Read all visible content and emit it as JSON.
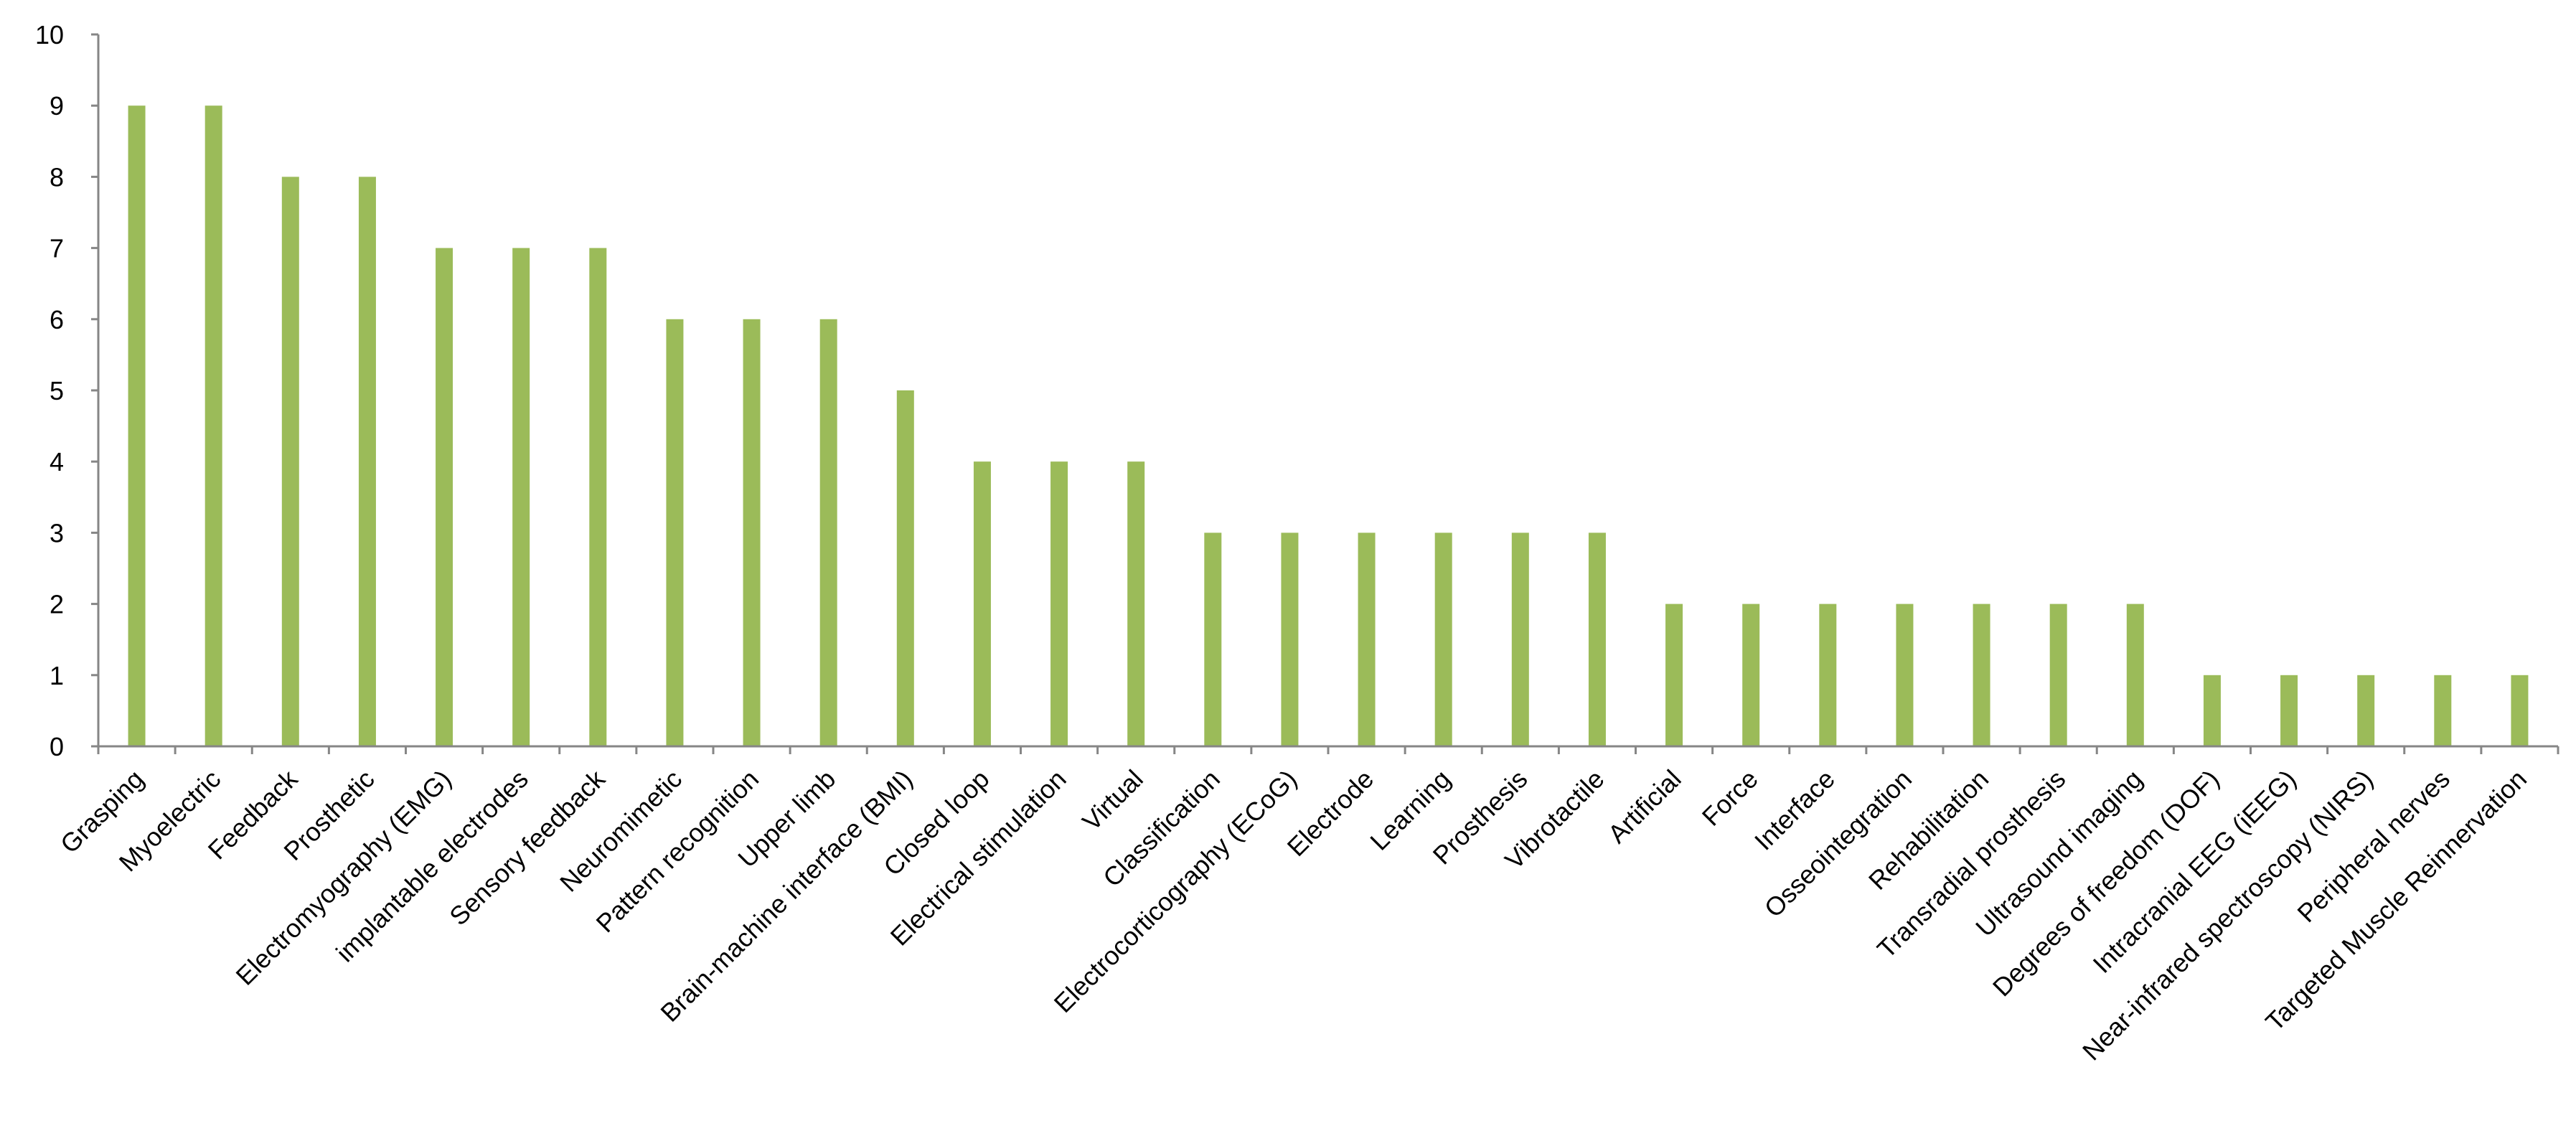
{
  "chart_data": {
    "type": "bar",
    "title": "",
    "xlabel": "",
    "ylabel": "",
    "ylim": [
      0,
      10
    ],
    "yticks": [
      0,
      1,
      2,
      3,
      4,
      5,
      6,
      7,
      8,
      9,
      10
    ],
    "grid": false,
    "legend": "none",
    "bar_color": "#9BBB59",
    "categories": [
      "Grasping",
      "Myoelectric",
      "Feedback",
      "Prosthetic",
      "Electromyography (EMG)",
      "implantable electrodes",
      "Sensory feedback",
      "Neuromimetic",
      "Pattern recognition",
      "Upper limb",
      "Brain-machine interface (BMI)",
      "Closed loop",
      "Electrical stimulation",
      "Virtual",
      "Classification",
      "Electrocorticography (ECoG)",
      "Electrode",
      "Learning",
      "Prosthesis",
      "Vibrotactile",
      "Artificial",
      "Force",
      "Interface",
      "Osseointegration",
      "Rehabilitation",
      "Transradial prosthesis",
      "Ultrasound imaging",
      "Degrees of freedom (DOF)",
      "Intracranial EEG (iEEG)",
      "Near-infrared spectroscopy (NIRS)",
      "Peripheral nerves",
      "Targeted Muscle Reinnervation"
    ],
    "values": [
      9,
      9,
      8,
      8,
      7,
      7,
      7,
      6,
      6,
      6,
      5,
      4,
      4,
      4,
      3,
      3,
      3,
      3,
      3,
      3,
      2,
      2,
      2,
      2,
      2,
      2,
      2,
      1,
      1,
      1,
      1,
      1
    ]
  }
}
